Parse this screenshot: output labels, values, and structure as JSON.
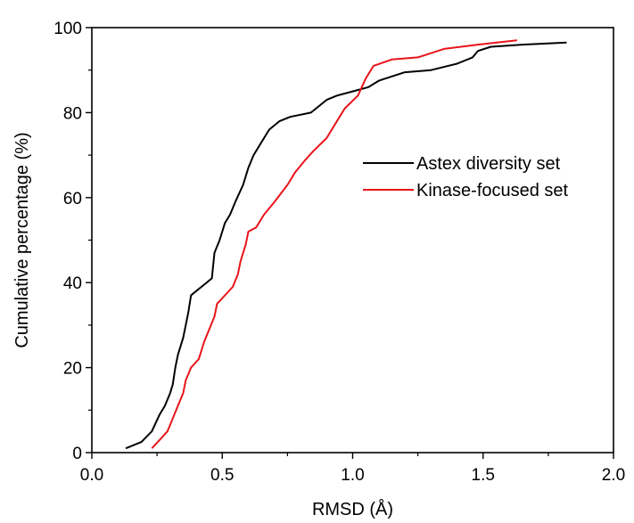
{
  "chart_data": {
    "type": "line",
    "title": "",
    "xlabel": "RMSD (Å)",
    "ylabel": "Cumulative percentage (%)",
    "xlim": [
      0.0,
      2.0
    ],
    "ylim": [
      0,
      100
    ],
    "x_ticks": [
      "0.0",
      "0.5",
      "1.0",
      "1.5",
      "2.0"
    ],
    "y_ticks": [
      "0",
      "20",
      "40",
      "60",
      "80",
      "100"
    ],
    "grid": false,
    "legend_position": "center-right",
    "series": [
      {
        "name": "Astex diversity set",
        "color": "#000000",
        "points": [
          [
            0.13,
            1
          ],
          [
            0.19,
            2.5
          ],
          [
            0.23,
            5
          ],
          [
            0.26,
            9
          ],
          [
            0.28,
            11
          ],
          [
            0.3,
            14
          ],
          [
            0.31,
            16
          ],
          [
            0.32,
            20
          ],
          [
            0.33,
            23
          ],
          [
            0.35,
            27
          ],
          [
            0.36,
            30
          ],
          [
            0.37,
            33
          ],
          [
            0.38,
            37
          ],
          [
            0.4,
            38
          ],
          [
            0.43,
            39.5
          ],
          [
            0.46,
            41
          ],
          [
            0.47,
            47
          ],
          [
            0.49,
            50
          ],
          [
            0.51,
            54
          ],
          [
            0.53,
            56
          ],
          [
            0.55,
            59
          ],
          [
            0.58,
            63
          ],
          [
            0.6,
            67
          ],
          [
            0.62,
            70
          ],
          [
            0.65,
            73
          ],
          [
            0.68,
            76
          ],
          [
            0.72,
            78
          ],
          [
            0.76,
            79
          ],
          [
            0.84,
            80
          ],
          [
            0.9,
            83
          ],
          [
            0.94,
            84
          ],
          [
            1.0,
            85
          ],
          [
            1.06,
            86
          ],
          [
            1.1,
            87.5
          ],
          [
            1.2,
            89.5
          ],
          [
            1.3,
            90
          ],
          [
            1.4,
            91.5
          ],
          [
            1.46,
            93
          ],
          [
            1.48,
            94.5
          ],
          [
            1.53,
            95.5
          ],
          [
            1.65,
            96
          ],
          [
            1.82,
            96.5
          ]
        ]
      },
      {
        "name": "Kinase-focused set",
        "color": "#e8141b",
        "points": [
          [
            0.23,
            1
          ],
          [
            0.26,
            3
          ],
          [
            0.29,
            5
          ],
          [
            0.31,
            8
          ],
          [
            0.33,
            11
          ],
          [
            0.35,
            14
          ],
          [
            0.36,
            17
          ],
          [
            0.38,
            20
          ],
          [
            0.41,
            22
          ],
          [
            0.43,
            26
          ],
          [
            0.45,
            29
          ],
          [
            0.47,
            32
          ],
          [
            0.48,
            35
          ],
          [
            0.51,
            37
          ],
          [
            0.54,
            39
          ],
          [
            0.56,
            42
          ],
          [
            0.57,
            45
          ],
          [
            0.59,
            49
          ],
          [
            0.6,
            52
          ],
          [
            0.63,
            53
          ],
          [
            0.66,
            56
          ],
          [
            0.7,
            59
          ],
          [
            0.75,
            63
          ],
          [
            0.78,
            66
          ],
          [
            0.82,
            69
          ],
          [
            0.85,
            71
          ],
          [
            0.9,
            74
          ],
          [
            0.93,
            77
          ],
          [
            0.97,
            81
          ],
          [
            1.02,
            84
          ],
          [
            1.05,
            88
          ],
          [
            1.08,
            91
          ],
          [
            1.15,
            92.5
          ],
          [
            1.25,
            93
          ],
          [
            1.35,
            95
          ],
          [
            1.48,
            96
          ],
          [
            1.63,
            97
          ]
        ]
      }
    ]
  }
}
